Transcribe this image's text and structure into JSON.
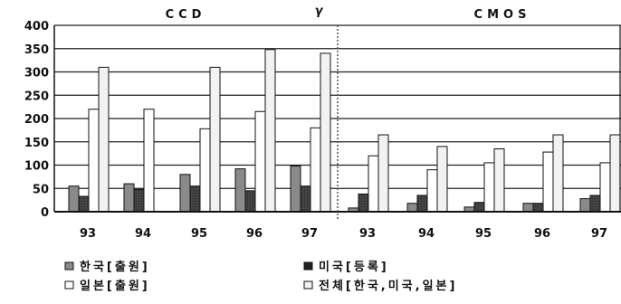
{
  "chart_data": {
    "type": "bar",
    "ylim": [
      0,
      400
    ],
    "yticks": [
      0,
      50,
      100,
      150,
      200,
      250,
      300,
      350,
      400
    ],
    "grid": true,
    "legend_placement": "bottom-left",
    "series_names": [
      "한국[출원]",
      "미국[등록]",
      "일본[출원]",
      "전체[한국,미국,일본]"
    ],
    "series_colors": [
      "#8a8a8a",
      "#3a3a3a",
      "#ffffff",
      "#f2f2f2"
    ],
    "panels": [
      {
        "title": "CCD",
        "categories": [
          "93",
          "94",
          "95",
          "96",
          "97"
        ],
        "series": [
          {
            "values": [
              55,
              60,
              80,
              92,
              98
            ]
          },
          {
            "values": [
              33,
              48,
              55,
              45,
              55
            ]
          },
          {
            "values": [
              220,
              220,
              178,
              215,
              180
            ]
          },
          {
            "values": [
              310,
              0,
              310,
              348,
              340
            ]
          }
        ]
      },
      {
        "title": "CMOS",
        "categories": [
          "93",
          "94",
          "95",
          "96",
          "97"
        ],
        "series": [
          {
            "values": [
              8,
              18,
              10,
              18,
              28
            ]
          },
          {
            "values": [
              38,
              35,
              20,
              18,
              35
            ]
          },
          {
            "values": [
              120,
              90,
              105,
              128,
              105
            ]
          },
          {
            "values": [
              165,
              140,
              135,
              165,
              165
            ]
          }
        ]
      }
    ],
    "annotation": "γ"
  }
}
